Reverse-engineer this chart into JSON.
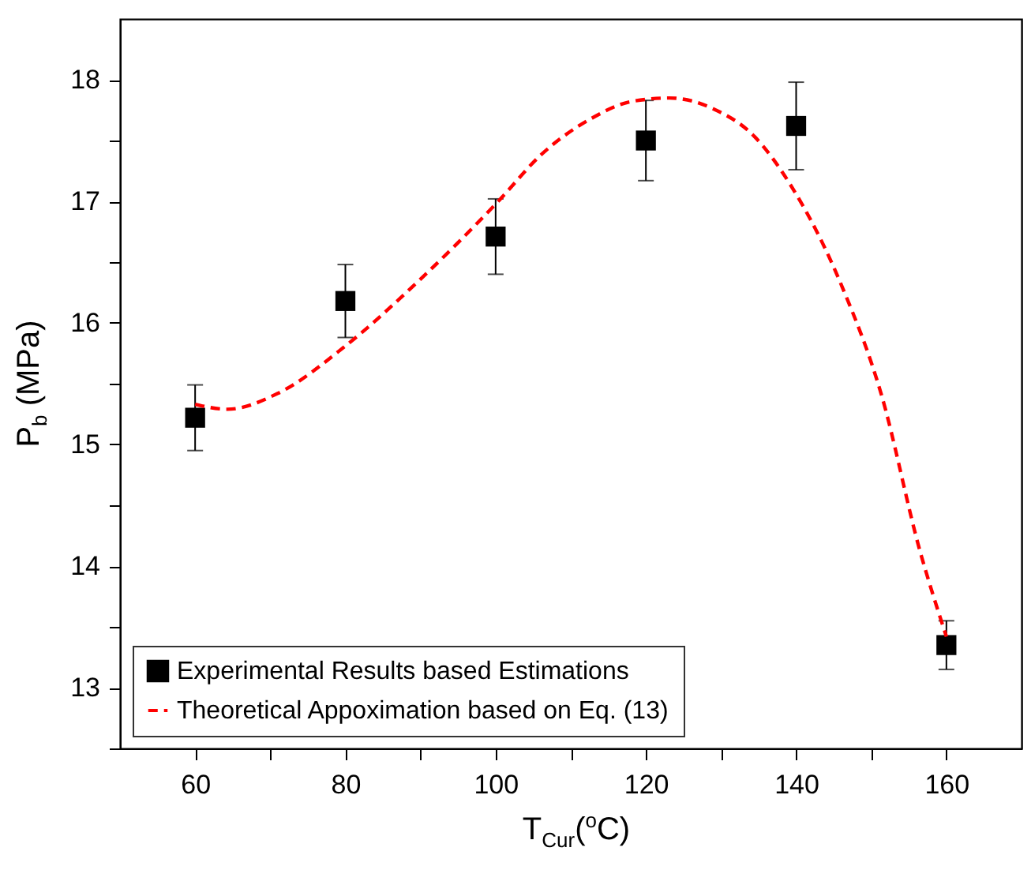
{
  "chart_data": {
    "type": "scatter",
    "xlabel": "T$_{Cur}$($^{o}$C)",
    "ylabel": "P$_{b}$ (MPa)",
    "xlim": [
      50,
      170
    ],
    "xticks": [
      60,
      {
        "value": 70,
        "label": null
      },
      80,
      {
        "value": 90,
        "label": null
      },
      100,
      {
        "value": 110,
        "label": null
      },
      120,
      {
        "value": 130,
        "label": null
      },
      140,
      {
        "value": 150,
        "label": null
      },
      160
    ],
    "ylim": [
      12.5,
      18.5
    ],
    "yticks": [
      {
        "value": 12.5,
        "label": null
      },
      13,
      {
        "value": 13.5,
        "label": null
      },
      14,
      {
        "value": 14.5,
        "label": null
      },
      15,
      {
        "value": 15.5,
        "label": null
      },
      16,
      {
        "value": 16.5,
        "label": null
      },
      17,
      {
        "value": 17.5,
        "label": null
      },
      18
    ],
    "grid": false,
    "legend": "bottom left",
    "series": [
      {
        "name": "Experimental Results based Estimations",
        "color": "#000000",
        "marker": "square",
        "x": [
          60,
          80,
          100,
          120,
          140,
          160
        ],
        "values": [
          15.22,
          16.18,
          16.71,
          17.5,
          17.62,
          13.35
        ],
        "errors": [
          0.27,
          0.3,
          0.31,
          0.33,
          0.36,
          0.2
        ]
      },
      {
        "type": "line",
        "name": "Theoretical Appoximation based on Eq. (13)",
        "color": "#ff0000",
        "line_style": "dashed",
        "marker": "none",
        "x": [
          60,
          64.3,
          71,
          80,
          90,
          100.5,
          106,
          112.7,
          118,
          123.1,
          129,
          134.5,
          139.3,
          146.1,
          151.3,
          156.5,
          160
        ],
        "values": [
          15.33,
          15.29,
          15.42,
          15.81,
          16.36,
          17.01,
          17.38,
          17.68,
          17.82,
          17.85,
          17.76,
          17.53,
          17.13,
          16.3,
          15.42,
          14.12,
          13.42
        ]
      }
    ]
  }
}
